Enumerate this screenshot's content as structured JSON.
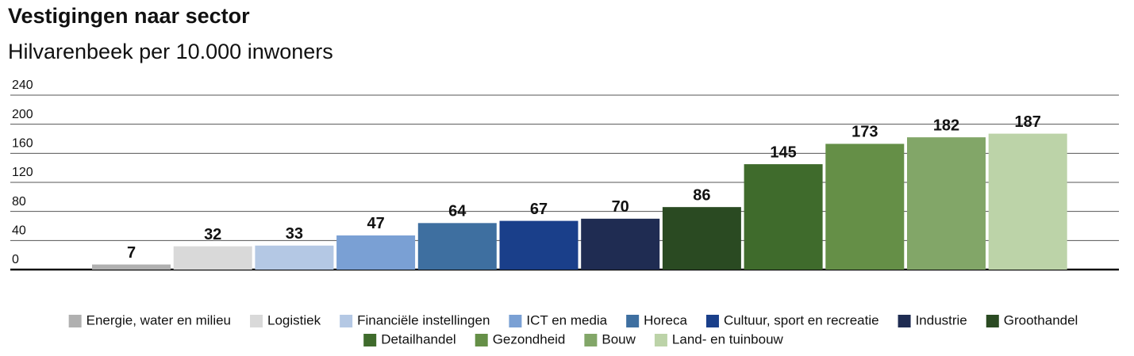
{
  "chart_data": {
    "type": "bar",
    "title": "Vestigingen naar sector",
    "subtitle": "Hilvarenbeek per 10.000 inwoners",
    "categories": [
      "Energie, water en milieu",
      "Logistiek",
      "Financiële instellingen",
      "ICT en media",
      "Horeca",
      "Cultuur, sport en recreatie",
      "Industrie",
      "Groothandel",
      "Detailhandel",
      "Gezondheid",
      "Bouw",
      "Land- en tuinbouw"
    ],
    "values": [
      7,
      32,
      33,
      47,
      64,
      67,
      70,
      86,
      145,
      173,
      182,
      187
    ],
    "colors": [
      "#b0b0b0",
      "#d9d9d9",
      "#b4c8e4",
      "#7aa0d4",
      "#3e6fa0",
      "#1a3f8a",
      "#1f2c52",
      "#2a4a22",
      "#3f6b2c",
      "#658f47",
      "#82a668",
      "#bcd3a8"
    ],
    "ylim": [
      0,
      240
    ],
    "yticks": [
      0,
      40,
      80,
      120,
      160,
      200,
      240
    ],
    "grid": true,
    "legend": "bottom"
  }
}
